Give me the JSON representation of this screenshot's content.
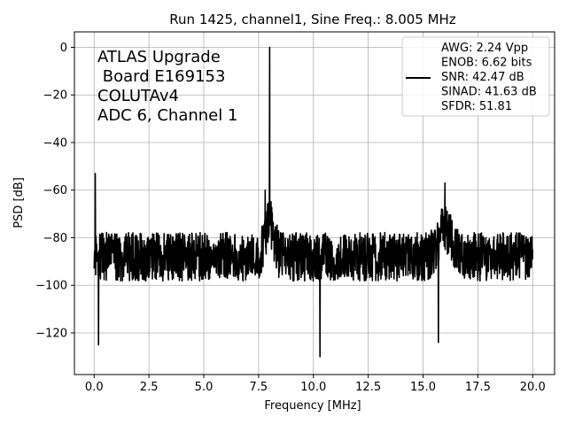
{
  "chart_data": {
    "type": "line",
    "title": "Run 1425, channel1, Sine Freq.: 8.005 MHz",
    "xlabel": "Frequency [MHz]",
    "ylabel": "PSD [dB]",
    "xlim": [
      -0.9,
      21.0
    ],
    "ylim": [
      -137.5,
      6.5
    ],
    "xticks": [
      0.0,
      2.5,
      5.0,
      7.5,
      10.0,
      12.5,
      15.0,
      17.5,
      20.0
    ],
    "xtick_labels": [
      "0.0",
      "2.5",
      "5.0",
      "7.5",
      "10.0",
      "12.5",
      "15.0",
      "17.5",
      "20.0"
    ],
    "yticks": [
      0,
      -20,
      -40,
      -60,
      -80,
      -100,
      -120
    ],
    "ytick_labels": [
      "0",
      "−20",
      "−40",
      "−60",
      "−80",
      "−100",
      "−120"
    ],
    "grid": true,
    "legend_position": "top-right",
    "annotation_lines": [
      "ATLAS Upgrade",
      " Board E169153",
      "COLUTAv4",
      "ADC 6, Channel 1"
    ],
    "legend_lines": [
      "AWG: 2.24 Vpp",
      "ENOB: 6.62 bits",
      "SNR: 42.47 dB",
      "SINAD: 41.63 dB",
      "SFDR: 51.81"
    ],
    "line_color": "#000000",
    "series": [
      {
        "x_range": [
          0.0,
          20.0
        ],
        "noise_floor_db": -88,
        "noise_spread_db": [
          -100,
          -76
        ],
        "peaks": [
          {
            "x": 8.005,
            "y": 0
          },
          {
            "x": 0.05,
            "y": -53
          },
          {
            "x": 16.0,
            "y": -57
          },
          {
            "x": 7.8,
            "y": -60
          },
          {
            "x": 0.2,
            "y": -125
          },
          {
            "x": 10.3,
            "y": -130
          },
          {
            "x": 15.7,
            "y": -124
          }
        ]
      }
    ]
  }
}
